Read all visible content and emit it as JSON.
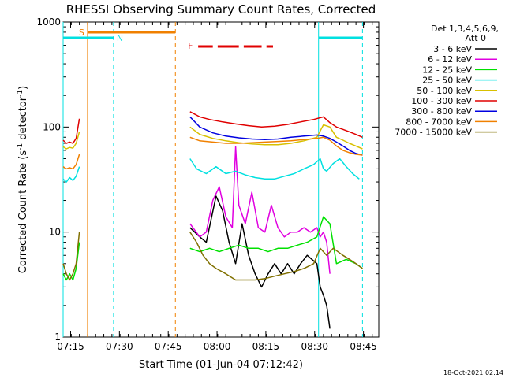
{
  "chart_data": {
    "type": "line",
    "title": "RHESSI Observing Summary Count Rates, Corrected",
    "xlabel": "Start Time (01-Jun-04 07:12:42)",
    "ylabel_main": "Corrected Count Rate (s",
    "ylabel_sup1": "-1",
    "ylabel_mid": " detector",
    "ylabel_sup2": "-1",
    "ylabel_end": ")",
    "footer": "18-Oct-2021 02:14",
    "yscale": "log",
    "ylim": [
      1,
      1000
    ],
    "xlim_minutes": [
      0,
      97
    ],
    "y_ticks": [
      {
        "value": 1,
        "label": "1"
      },
      {
        "value": 10,
        "label": "10"
      },
      {
        "value": 100,
        "label": "100"
      },
      {
        "value": 1000,
        "label": "1000"
      }
    ],
    "x_ticks": [
      {
        "min": 2.3,
        "label": "07:15"
      },
      {
        "min": 17.3,
        "label": "07:30"
      },
      {
        "min": 32.3,
        "label": "07:45"
      },
      {
        "min": 47.3,
        "label": "08:00"
      },
      {
        "min": 62.3,
        "label": "08:15"
      },
      {
        "min": 77.3,
        "label": "08:30"
      },
      {
        "min": 92.3,
        "label": "08:45"
      }
    ],
    "legend": {
      "header1": "Det 1,3,4,5,6,9,",
      "header2": "Att 0",
      "entries": [
        {
          "label": "3 - 6 keV",
          "color": "#000000"
        },
        {
          "label": "6 - 12 keV",
          "color": "#e000e0"
        },
        {
          "label": "12 - 25 keV",
          "color": "#00e000"
        },
        {
          "label": "25 - 50 keV",
          "color": "#00e0e0"
        },
        {
          "label": "50 - 100 keV",
          "color": "#d8c000"
        },
        {
          "label": "100 - 300 keV",
          "color": "#e00000"
        },
        {
          "label": "300 - 800 keV",
          "color": "#0000e0"
        },
        {
          "label": "800 - 7000 keV",
          "color": "#f08000"
        },
        {
          "label": "7000 - 15000 keV",
          "color": "#807000"
        }
      ]
    },
    "flags": {
      "saa_label": "S",
      "night_label": "N",
      "flare_label": "F",
      "saa_color": "#f08000",
      "night_color": "#00e0e0",
      "flare_color": "#e00000",
      "saa_bar_min": [
        7.5,
        34.5
      ],
      "night_bars_min": [
        [
          0,
          15.5
        ],
        [
          78.5,
          92
        ]
      ],
      "flare_segments_min": [
        [
          41.5,
          46
        ],
        [
          47.5,
          54
        ],
        [
          55.5,
          61
        ],
        [
          62.5,
          64.5
        ]
      ],
      "saa_lines_min": [
        7.5,
        34.5
      ],
      "night_lines_min": [
        0,
        15.5,
        78.5,
        92
      ]
    },
    "series": [
      {
        "name": "3 - 6 keV",
        "color": "#000000",
        "segments": [
          [
            [
              39,
              11
            ],
            [
              42,
              9
            ],
            [
              44,
              8
            ],
            [
              47,
              22
            ],
            [
              49,
              16
            ],
            [
              51,
              8
            ],
            [
              53,
              5
            ],
            [
              55,
              12
            ],
            [
              57,
              6
            ],
            [
              59,
              4
            ],
            [
              61,
              3
            ],
            [
              63,
              4
            ],
            [
              65,
              5
            ],
            [
              67,
              4
            ],
            [
              69,
              5
            ],
            [
              71,
              4
            ],
            [
              73,
              5
            ],
            [
              75,
              6
            ],
            [
              78,
              5
            ],
            [
              79,
              3
            ],
            [
              80,
              2.5
            ],
            [
              81,
              2
            ],
            [
              82,
              1.2
            ]
          ]
        ]
      },
      {
        "name": "6 - 12 keV",
        "color": "#e000e0",
        "segments": [
          [
            [
              39,
              12
            ],
            [
              42,
              9
            ],
            [
              44,
              10
            ],
            [
              46,
              20
            ],
            [
              48,
              27
            ],
            [
              50,
              14
            ],
            [
              52,
              11
            ],
            [
              53,
              65
            ],
            [
              54,
              18
            ],
            [
              56,
              12
            ],
            [
              58,
              24
            ],
            [
              60,
              11
            ],
            [
              62,
              10
            ],
            [
              64,
              18
            ],
            [
              66,
              11
            ],
            [
              68,
              9
            ],
            [
              70,
              10
            ],
            [
              72,
              10
            ],
            [
              74,
              11
            ],
            [
              76,
              10
            ],
            [
              78,
              11
            ],
            [
              79,
              9
            ],
            [
              80,
              10
            ],
            [
              81,
              8
            ],
            [
              82,
              4
            ]
          ]
        ]
      },
      {
        "name": "12 - 25 keV",
        "color": "#00e000",
        "segments": [
          [
            [
              0,
              4
            ],
            [
              1,
              3.5
            ],
            [
              2,
              4
            ],
            [
              3,
              3.5
            ],
            [
              4,
              4.5
            ],
            [
              5,
              8
            ]
          ],
          [
            [
              39,
              7
            ],
            [
              42,
              6.5
            ],
            [
              45,
              7
            ],
            [
              48,
              6.5
            ],
            [
              51,
              7
            ],
            [
              54,
              7.5
            ],
            [
              57,
              7
            ],
            [
              60,
              7
            ],
            [
              63,
              6.5
            ],
            [
              66,
              7
            ],
            [
              69,
              7
            ],
            [
              72,
              7.5
            ],
            [
              75,
              8
            ],
            [
              78,
              9
            ],
            [
              80,
              14
            ],
            [
              82,
              12
            ],
            [
              84,
              5
            ],
            [
              87,
              5.5
            ],
            [
              90,
              5
            ],
            [
              92,
              4.5
            ]
          ]
        ]
      },
      {
        "name": "25 - 50 keV",
        "color": "#00e0e0",
        "segments": [
          [
            [
              0,
              32
            ],
            [
              1,
              30
            ],
            [
              2,
              33
            ],
            [
              3,
              31
            ],
            [
              4,
              34
            ],
            [
              5,
              42
            ]
          ],
          [
            [
              39,
              50
            ],
            [
              41,
              40
            ],
            [
              44,
              36
            ],
            [
              47,
              42
            ],
            [
              50,
              36
            ],
            [
              53,
              38
            ],
            [
              56,
              35
            ],
            [
              59,
              33
            ],
            [
              62,
              32
            ],
            [
              65,
              32
            ],
            [
              68,
              34
            ],
            [
              71,
              36
            ],
            [
              74,
              40
            ],
            [
              77,
              44
            ],
            [
              79,
              50
            ],
            [
              80,
              40
            ],
            [
              81,
              38
            ],
            [
              83,
              45
            ],
            [
              85,
              50
            ],
            [
              87,
              42
            ],
            [
              89,
              36
            ],
            [
              91,
              32
            ]
          ]
        ]
      },
      {
        "name": "50 - 100 keV",
        "color": "#d8c000",
        "segments": [
          [
            [
              0,
              65
            ],
            [
              1,
              62
            ],
            [
              2,
              64
            ],
            [
              3,
              63
            ],
            [
              4,
              70
            ],
            [
              5,
              90
            ]
          ],
          [
            [
              39,
              100
            ],
            [
              42,
              85
            ],
            [
              46,
              78
            ],
            [
              50,
              74
            ],
            [
              54,
              71
            ],
            [
              58,
              69
            ],
            [
              62,
              68
            ],
            [
              66,
              68
            ],
            [
              70,
              70
            ],
            [
              74,
              74
            ],
            [
              78,
              80
            ],
            [
              80,
              105
            ],
            [
              82,
              100
            ],
            [
              84,
              80
            ],
            [
              86,
              75
            ],
            [
              88,
              70
            ],
            [
              90,
              66
            ],
            [
              92,
              62
            ]
          ]
        ]
      },
      {
        "name": "100 - 300 keV",
        "color": "#e00000",
        "segments": [
          [
            [
              0,
              75
            ],
            [
              1,
              70
            ],
            [
              2,
              72
            ],
            [
              3,
              70
            ],
            [
              4,
              78
            ],
            [
              5,
              120
            ]
          ],
          [
            [
              39,
              140
            ],
            [
              42,
              125
            ],
            [
              45,
              118
            ],
            [
              49,
              112
            ],
            [
              53,
              107
            ],
            [
              57,
              103
            ],
            [
              61,
              100
            ],
            [
              65,
              102
            ],
            [
              69,
              106
            ],
            [
              73,
              112
            ],
            [
              77,
              118
            ],
            [
              80,
              125
            ],
            [
              82,
              110
            ],
            [
              84,
              100
            ],
            [
              86,
              95
            ],
            [
              88,
              90
            ],
            [
              90,
              85
            ],
            [
              92,
              80
            ]
          ]
        ]
      },
      {
        "name": "300 - 800 keV",
        "color": "#0000e0",
        "segments": [
          [
            [
              39,
              125
            ],
            [
              42,
              100
            ],
            [
              46,
              88
            ],
            [
              50,
              82
            ],
            [
              54,
              79
            ],
            [
              58,
              77
            ],
            [
              62,
              76
            ],
            [
              66,
              77
            ],
            [
              70,
              80
            ],
            [
              74,
              82
            ],
            [
              78,
              84
            ],
            [
              80,
              82
            ],
            [
              82,
              78
            ],
            [
              84,
              72
            ],
            [
              86,
              66
            ],
            [
              88,
              60
            ],
            [
              90,
              56
            ],
            [
              92,
              54
            ]
          ]
        ]
      },
      {
        "name": "800 - 7000 keV",
        "color": "#f08000",
        "segments": [
          [
            [
              0,
              42
            ],
            [
              1,
              40
            ],
            [
              2,
              41
            ],
            [
              3,
              40
            ],
            [
              4,
              44
            ],
            [
              5,
              55
            ]
          ],
          [
            [
              39,
              80
            ],
            [
              42,
              74
            ],
            [
              46,
              72
            ],
            [
              50,
              70
            ],
            [
              54,
              70
            ],
            [
              58,
              71
            ],
            [
              62,
              72
            ],
            [
              66,
              73
            ],
            [
              70,
              74
            ],
            [
              74,
              76
            ],
            [
              78,
              78
            ],
            [
              80,
              80
            ],
            [
              82,
              75
            ],
            [
              84,
              66
            ],
            [
              86,
              60
            ],
            [
              88,
              57
            ],
            [
              90,
              55
            ],
            [
              92,
              54
            ]
          ]
        ]
      },
      {
        "name": "7000 - 15000 keV",
        "color": "#807000",
        "segments": [
          [
            [
              0,
              5
            ],
            [
              1,
              4
            ],
            [
              2,
              3.5
            ],
            [
              3,
              4
            ],
            [
              4,
              5
            ],
            [
              5,
              10
            ]
          ],
          [
            [
              39,
              10
            ],
            [
              41,
              8
            ],
            [
              43,
              6
            ],
            [
              45,
              5
            ],
            [
              47,
              4.5
            ],
            [
              50,
              4
            ],
            [
              53,
              3.5
            ],
            [
              56,
              3.5
            ],
            [
              59,
              3.5
            ],
            [
              62,
              3.6
            ],
            [
              65,
              3.8
            ],
            [
              68,
              4
            ],
            [
              71,
              4.2
            ],
            [
              74,
              4.5
            ],
            [
              77,
              5
            ],
            [
              79,
              7
            ],
            [
              81,
              6
            ],
            [
              83,
              7
            ],
            [
              86,
              6
            ],
            [
              88,
              5.5
            ],
            [
              90,
              5
            ],
            [
              92,
              4.5
            ]
          ]
        ]
      }
    ]
  }
}
